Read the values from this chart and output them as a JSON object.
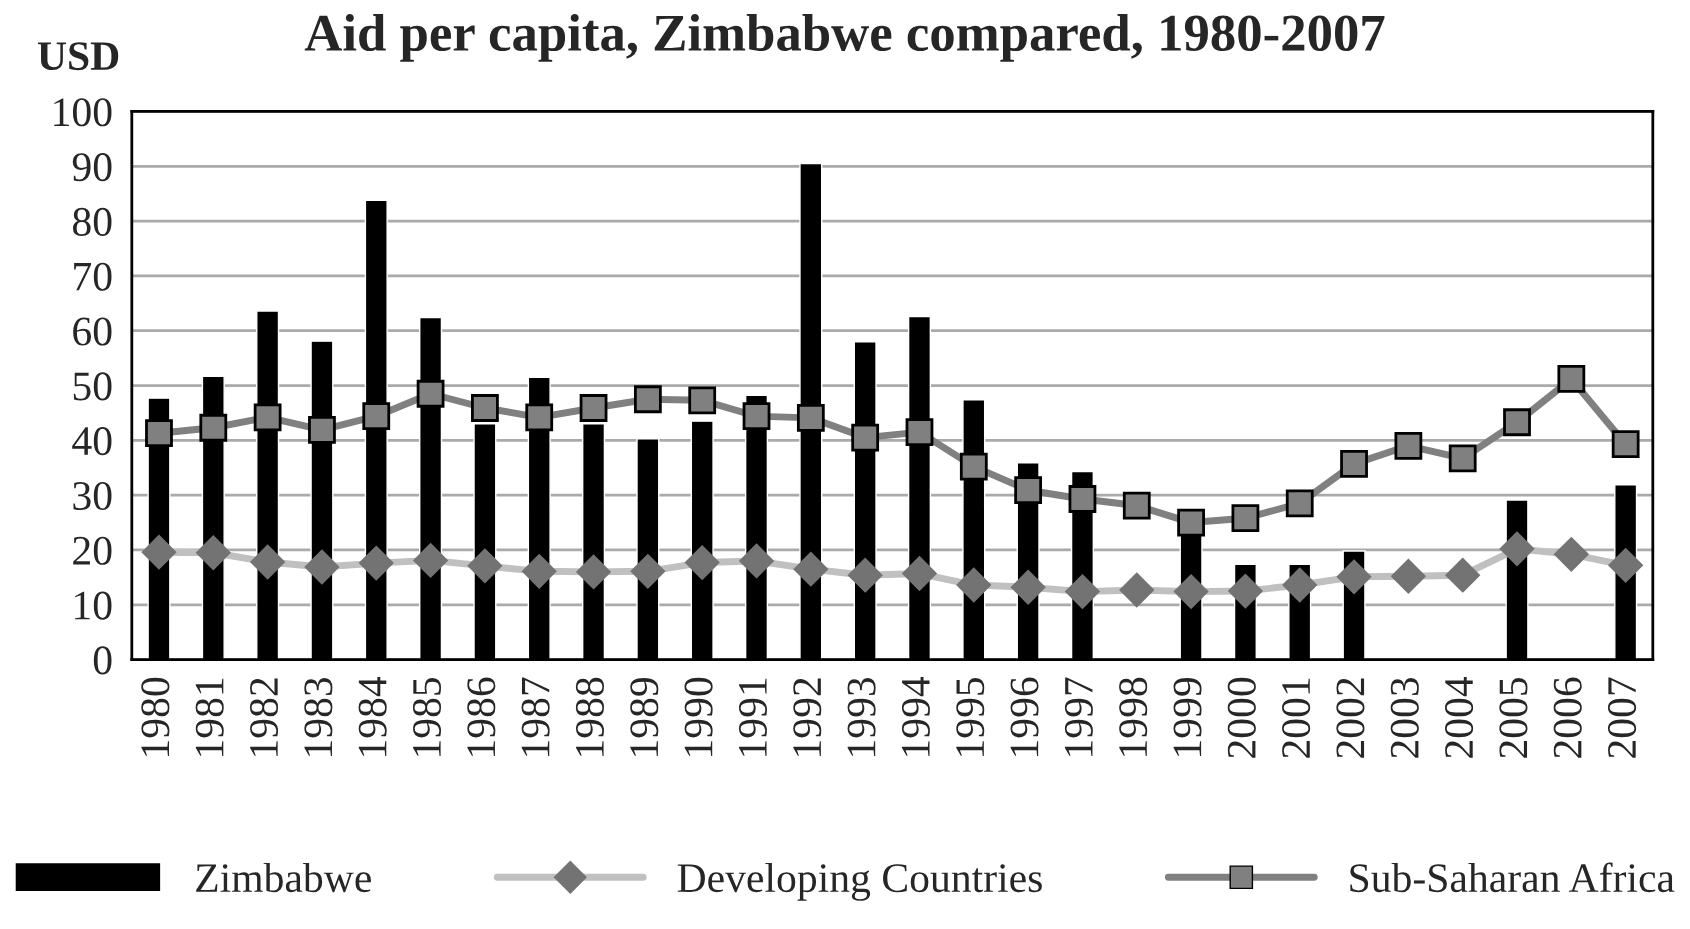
{
  "chart_data": {
    "type": "bar",
    "title": "Aid per capita, Zimbabwe compared, 1980-2007",
    "ylabel": "USD",
    "categories": [
      "1980",
      "1981",
      "1982",
      "1983",
      "1984",
      "1985",
      "1986",
      "1987",
      "1988",
      "1989",
      "1990",
      "1991",
      "1992",
      "1993",
      "1994",
      "1995",
      "1996",
      "1997",
      "1998",
      "1999",
      "2000",
      "2001",
      "2002",
      "2003",
      "2004",
      "2005",
      "2006",
      "2007"
    ],
    "series": [
      {
        "name": "Zimbabwe",
        "color": "#000000",
        "values": [
          47.7,
          51.7,
          63.6,
          58.1,
          83.8,
          62.4,
          43,
          51.5,
          43,
          40.3,
          43.5,
          48.2,
          90.5,
          58.0,
          62.6,
          47.4,
          35.9,
          34.3,
          null,
          23,
          17.4,
          17.4,
          19.8,
          null,
          null,
          29.1,
          null,
          31.9
        ]
      },
      {
        "name": "Developing Countries",
        "type": "line",
        "marker": "diamond",
        "color": "#c0c0c0",
        "values": [
          19.6,
          19.5,
          17.8,
          16.9,
          17.6,
          18.1,
          17.1,
          16.1,
          16.0,
          16.1,
          17.7,
          18.0,
          16.5,
          15.4,
          15.7,
          13.6,
          13.2,
          12.4,
          12.7,
          12.4,
          12.5,
          13.6,
          15.1,
          15.2,
          15.4,
          20.2,
          19.2,
          17.2
        ]
      },
      {
        "name": "Sub-Saharan Africa",
        "type": "line",
        "marker": "square",
        "color": "#808080",
        "values": [
          41.3,
          42.3,
          44.2,
          41.9,
          44.4,
          48.5,
          45.9,
          44.2,
          45.9,
          47.5,
          47.3,
          44.4,
          44.1,
          40.5,
          41.5,
          35.2,
          30.9,
          29.3,
          28.1,
          25.0,
          25.8,
          28.5,
          35.7,
          39.0,
          36.7,
          43.3,
          51.2,
          39.3
        ]
      }
    ],
    "ylim": [
      0,
      100
    ],
    "yticks": [
      0,
      10,
      20,
      30,
      40,
      50,
      60,
      70,
      80,
      90,
      100
    ],
    "grid": "y",
    "legend": "bottom"
  }
}
